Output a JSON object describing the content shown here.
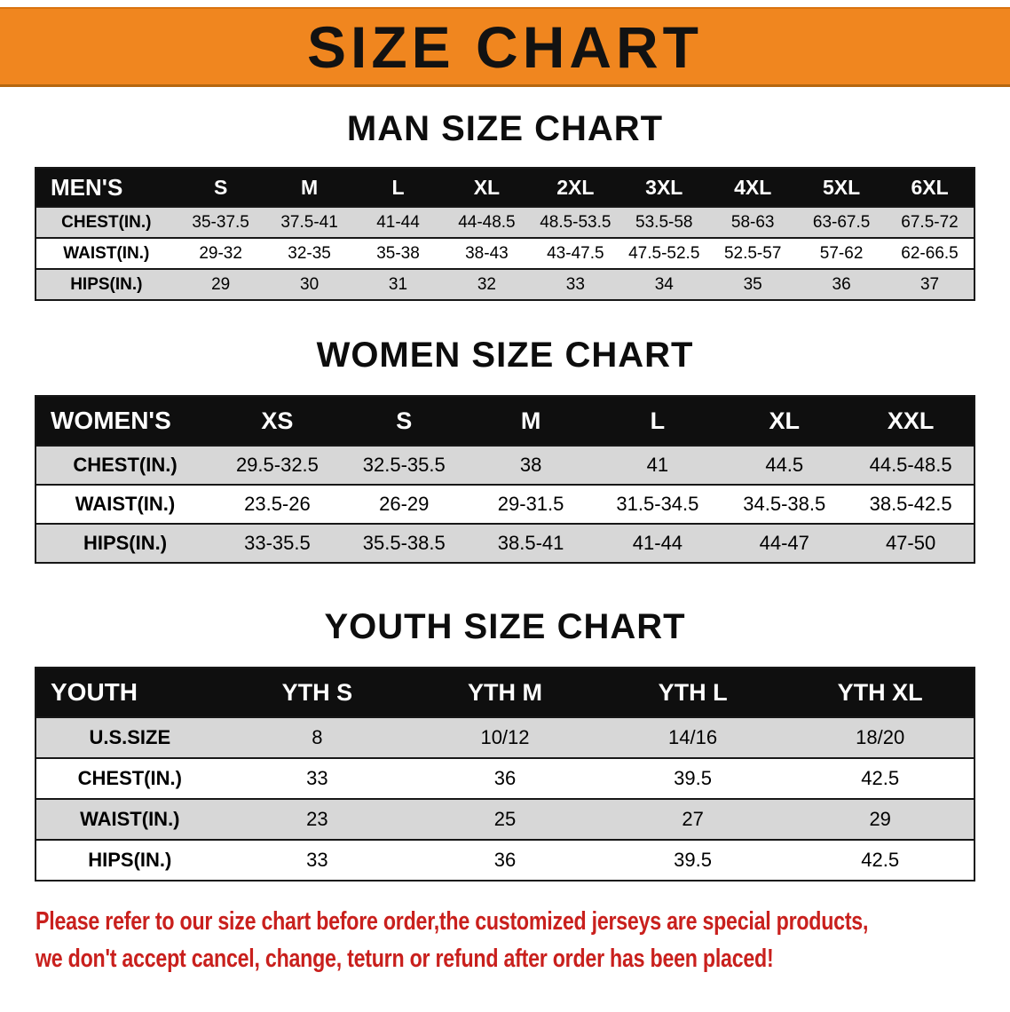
{
  "banner": {
    "title": "SIZE CHART",
    "bg_color": "#f0861f"
  },
  "sections": [
    {
      "heading": "MAN SIZE CHART",
      "table": {
        "header": [
          "MEN'S",
          "S",
          "M",
          "L",
          "XL",
          "2XL",
          "3XL",
          "4XL",
          "5XL",
          "6XL"
        ],
        "rows": [
          [
            "CHEST(IN.)",
            "35-37.5",
            "37.5-41",
            "41-44",
            "44-48.5",
            "48.5-53.5",
            "53.5-58",
            "58-63",
            "63-67.5",
            "67.5-72"
          ],
          [
            "WAIST(IN.)",
            "29-32",
            "32-35",
            "35-38",
            "38-43",
            "43-47.5",
            "47.5-52.5",
            "52.5-57",
            "57-62",
            "62-66.5"
          ],
          [
            "HIPS(IN.)",
            "29",
            "30",
            "31",
            "32",
            "33",
            "34",
            "35",
            "36",
            "37"
          ]
        ]
      }
    },
    {
      "heading": "WOMEN SIZE CHART",
      "table": {
        "header": [
          "WOMEN'S",
          "XS",
          "S",
          "M",
          "L",
          "XL",
          "XXL"
        ],
        "rows": [
          [
            "CHEST(IN.)",
            "29.5-32.5",
            "32.5-35.5",
            "38",
            "41",
            "44.5",
            "44.5-48.5"
          ],
          [
            "WAIST(IN.)",
            "23.5-26",
            "26-29",
            "29-31.5",
            "31.5-34.5",
            "34.5-38.5",
            "38.5-42.5"
          ],
          [
            "HIPS(IN.)",
            "33-35.5",
            "35.5-38.5",
            "38.5-41",
            "41-44",
            "44-47",
            "47-50"
          ]
        ]
      }
    },
    {
      "heading": "YOUTH SIZE CHART",
      "table": {
        "header": [
          "YOUTH",
          "YTH S",
          "YTH M",
          "YTH L",
          "YTH XL"
        ],
        "rows": [
          [
            "U.S.SIZE",
            "8",
            "10/12",
            "14/16",
            "18/20"
          ],
          [
            "CHEST(IN.)",
            "33",
            "36",
            "39.5",
            "42.5"
          ],
          [
            "WAIST(IN.)",
            "23",
            "25",
            "27",
            "29"
          ],
          [
            "HIPS(IN.)",
            "33",
            "36",
            "39.5",
            "42.5"
          ]
        ]
      }
    }
  ],
  "footer": {
    "line1": "Please refer to our size chart before order,the customized jerseys are special products,",
    "line2": "we don't accept cancel, change, teturn or refund after order has been placed!",
    "text_color": "#c9201d"
  }
}
